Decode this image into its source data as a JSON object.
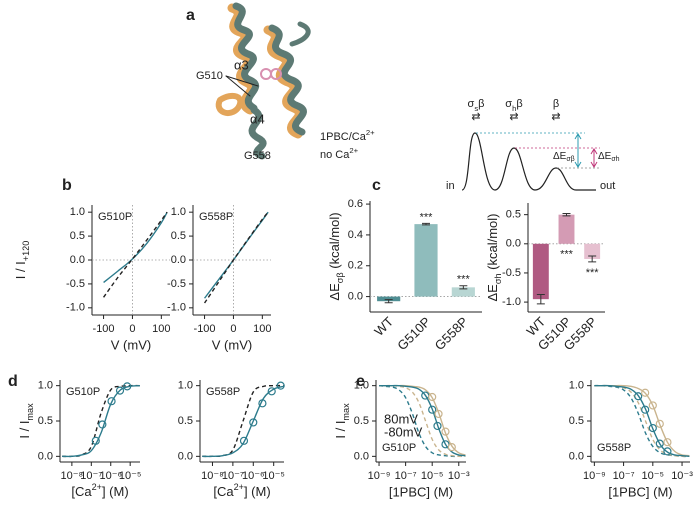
{
  "panel_labels": [
    "a",
    "b",
    "c",
    "d",
    "e"
  ],
  "structure": {
    "helix3": "α3",
    "g510": "G510",
    "helix4": "α4",
    "g558": "G558",
    "legend": [
      {
        "rich": [
          "1PBC/Ca",
          "2+"
        ],
        "color": "#5f8c86"
      },
      {
        "rich": [
          "no Ca",
          "2+"
        ],
        "color": "#e3a55a"
      }
    ]
  },
  "energy_diagram": {
    "states": [
      [
        "σ",
        "s",
        "β"
      ],
      [
        "σ",
        "h",
        "β"
      ],
      [
        "β"
      ]
    ],
    "arrow": "⇄",
    "in": "in",
    "out": "out",
    "delta_sb": [
      "ΔE",
      "σβ"
    ],
    "delta_sh": [
      "ΔE",
      "σh"
    ],
    "color_sb": "#2c9bb0",
    "color_sh": "#c0387a"
  },
  "chart_data": [
    {
      "type": "line",
      "title": "G510P",
      "title_position": "top-left",
      "zero_lines": true,
      "x": [
        -100,
        -50,
        0,
        50,
        100,
        120
      ],
      "series": [
        {
          "color": "#2c7b8c",
          "dash": false,
          "values": [
            -0.47,
            -0.23,
            0.02,
            0.35,
            0.78,
            1.0
          ]
        },
        {
          "color": "#222222",
          "dash": true,
          "values": [
            -0.78,
            -0.36,
            0.02,
            0.42,
            0.83,
            1.0
          ]
        }
      ],
      "xlim": [
        -140,
        130
      ],
      "ylim": [
        -1.15,
        1.15
      ],
      "xticks": [
        -100,
        0,
        100
      ],
      "yticks": [
        {
          "value": -1,
          "label": "-1.0"
        },
        {
          "value": -0.5,
          "label": "-0.5"
        },
        {
          "value": 0,
          "label": "0.0"
        },
        {
          "value": 0.5,
          "label": "0.5"
        },
        {
          "value": 1,
          "label": "1.0"
        }
      ],
      "xlabel": "V (mV)",
      "ylabel": [
        "I / I",
        "+120"
      ]
    },
    {
      "type": "line",
      "title": "G558P",
      "title_position": "top-left",
      "zero_lines": true,
      "x": [
        -100,
        -50,
        0,
        50,
        100,
        120
      ],
      "series": [
        {
          "color": "#2c7b8c",
          "dash": false,
          "values": [
            -0.8,
            -0.4,
            0.0,
            0.42,
            0.83,
            1.0
          ]
        },
        {
          "color": "#222222",
          "dash": true,
          "values": [
            -0.9,
            -0.45,
            0.0,
            0.43,
            0.85,
            1.0
          ]
        }
      ],
      "xlim": [
        -140,
        130
      ],
      "ylim": [
        -1.15,
        1.15
      ],
      "xticks": [
        -100,
        0,
        100
      ],
      "yticks": [
        {
          "value": -1,
          "label": "-1.0"
        },
        {
          "value": -0.5,
          "label": "-0.5"
        },
        {
          "value": 0,
          "label": "0.0"
        },
        {
          "value": 0.5,
          "label": "0.5"
        },
        {
          "value": 1,
          "label": "1.0"
        }
      ],
      "xlabel": "V (mV)"
    },
    {
      "type": "bar",
      "zero_lines": true,
      "categories": [
        "WT",
        "G510P",
        "G558P"
      ],
      "values": [
        -0.03,
        0.47,
        0.06
      ],
      "errors": [
        0.01,
        0.005,
        0.01
      ],
      "colors": [
        "#4f8e93",
        "#8fbcbc",
        "#b8d6d3"
      ],
      "ylim": [
        -0.1,
        0.62
      ],
      "yticks": [
        {
          "value": 0,
          "label": "0.0"
        },
        {
          "value": 0.2,
          "label": "0.2"
        },
        {
          "value": 0.4,
          "label": "0.4"
        },
        {
          "value": 0.6,
          "label": "0.6"
        }
      ],
      "ylabel": [
        "ΔE",
        "σβ",
        " (kcal/mol)"
      ],
      "annotations": [
        {
          "category": "G510P",
          "text": "***"
        },
        {
          "category": "G558P",
          "text": "***"
        }
      ],
      "annotation_position": "above"
    },
    {
      "type": "bar",
      "zero_lines": true,
      "categories": [
        "WT",
        "G510P",
        "G558P"
      ],
      "values": [
        -0.95,
        0.5,
        -0.26
      ],
      "errors": [
        0.08,
        0.02,
        0.05
      ],
      "colors": [
        "#b05a82",
        "#d49bb4",
        "#e6c0d0"
      ],
      "ylim": [
        -1.17,
        0.7
      ],
      "yticks": [
        {
          "value": -1,
          "label": "-1.0"
        },
        {
          "value": -0.5,
          "label": "-0.5"
        },
        {
          "value": 0,
          "label": "0.0"
        },
        {
          "value": 0.5,
          "label": "0.5"
        }
      ],
      "ylabel": [
        "ΔE",
        "σh",
        " (kcal/mol)"
      ],
      "annotations": [
        {
          "category": "G510P",
          "text": "***"
        },
        {
          "category": "G558P",
          "text": "***"
        }
      ],
      "annotation_position": "below"
    },
    {
      "type": "dose-response",
      "log_x": true,
      "title": "G510P",
      "title_position": "top-left",
      "x": [
        3.16e-09,
        1e-08,
        3.16e-08,
        1e-07,
        3.16e-07,
        1e-06,
        3.16e-06,
        1e-05,
        3.16e-05
      ],
      "series": [
        {
          "color": "#222222",
          "dash": true,
          "values": [
            0,
            0,
            0.02,
            0.14,
            0.61,
            0.94,
            0.99,
            1,
            1
          ]
        },
        {
          "color": "#2c7b8c",
          "dash": false,
          "values": [
            0,
            0,
            0.02,
            0.08,
            0.33,
            0.74,
            0.94,
            0.99,
            1
          ]
        },
        {
          "color": "#2c7b8c",
          "marker": "circle",
          "x": [
            1.7e-07,
            3.7e-07,
            1.1e-06,
            3e-06,
            7e-06
          ],
          "values": [
            0.22,
            0.45,
            0.78,
            0.93,
            0.99
          ]
        }
      ],
      "xlim": [
        2.45e-09,
        3.2e-05
      ],
      "ylim": [
        -0.08,
        1.08
      ],
      "xticks": [
        {
          "value": 1e-08,
          "label": "10⁻⁸"
        },
        {
          "value": 1e-07,
          "label": "10⁻⁷"
        },
        {
          "value": 1e-06,
          "label": "10⁻⁶"
        },
        {
          "value": 1e-05,
          "label": "10⁻⁵"
        }
      ],
      "yticks": [
        {
          "value": 0,
          "label": "0.0"
        },
        {
          "value": 0.5,
          "label": "0.5"
        },
        {
          "value": 1,
          "label": "1.0"
        }
      ],
      "xlabel": [
        "[Ca",
        "2+",
        "] (M)"
      ],
      "ylabel": [
        "I / I",
        "max"
      ]
    },
    {
      "type": "dose-response",
      "log_x": true,
      "title": "G558P",
      "title_position": "top-left",
      "x": [
        3.16e-09,
        1e-08,
        3.16e-08,
        1e-07,
        3.16e-07,
        1e-06,
        3.16e-06,
        1e-05,
        3.16e-05
      ],
      "series": [
        {
          "color": "#222222",
          "dash": true,
          "values": [
            0,
            0,
            0.01,
            0.09,
            0.5,
            0.91,
            0.99,
            1,
            1
          ]
        },
        {
          "color": "#2c7b8c",
          "dash": false,
          "values": [
            0,
            0,
            0.01,
            0.05,
            0.18,
            0.5,
            0.82,
            0.95,
            0.99
          ]
        },
        {
          "color": "#2c7b8c",
          "marker": "circle",
          "x": [
            3.5e-07,
            1e-06,
            2.8e-06,
            8e-06,
            2.2e-05
          ],
          "values": [
            0.22,
            0.48,
            0.75,
            0.92,
            1.0
          ]
        }
      ],
      "xlim": [
        2.45e-09,
        3.2e-05
      ],
      "ylim": [
        -0.08,
        1.08
      ],
      "xticks": [
        {
          "value": 1e-08,
          "label": "10⁻⁸"
        },
        {
          "value": 1e-07,
          "label": "10⁻⁷"
        },
        {
          "value": 1e-06,
          "label": "10⁻⁶"
        },
        {
          "value": 1e-05,
          "label": "10⁻⁵"
        }
      ],
      "yticks": [
        {
          "value": 0,
          "label": "0.0"
        },
        {
          "value": 0.5,
          "label": "0.5"
        },
        {
          "value": 1,
          "label": "1.0"
        }
      ],
      "xlabel": [
        "[Ca",
        "2+",
        "] (M)"
      ]
    },
    {
      "type": "dose-response",
      "log_x": true,
      "title": "G510P",
      "title_position": "bottom-left",
      "legend": "left",
      "x": [
        1e-09,
        3.16e-09,
        1e-08,
        3.16e-08,
        1e-07,
        3.16e-07,
        1e-06,
        3.16e-06,
        1e-05,
        3.16e-05,
        0.0001,
        0.000316,
        0.001,
        0.00316
      ],
      "series": [
        {
          "color": "#2c7b8c",
          "dash": true,
          "values": [
            1,
            0.99,
            0.98,
            0.94,
            0.83,
            0.61,
            0.33,
            0.14,
            0.05,
            0.02,
            0.01,
            0,
            0,
            0
          ]
        },
        {
          "color": "#c9b48e",
          "dash": true,
          "values": [
            1,
            1,
            1,
            0.99,
            0.97,
            0.91,
            0.76,
            0.5,
            0.24,
            0.09,
            0.03,
            0.01,
            0,
            0
          ]
        },
        {
          "color": "#c9b48e",
          "dash": false,
          "values": [
            1,
            1,
            1,
            1,
            1,
            0.99,
            0.98,
            0.94,
            0.83,
            0.61,
            0.33,
            0.14,
            0.05,
            0.02
          ]
        },
        {
          "color": "#2c7b8c",
          "dash": false,
          "values": [
            1,
            1,
            1,
            1,
            0.99,
            0.98,
            0.95,
            0.86,
            0.67,
            0.39,
            0.17,
            0.06,
            0.02,
            0.01
          ]
        },
        {
          "name": "80mV",
          "color": "#2c7b8c",
          "marker": "circle",
          "x": [
            3e-06,
            1e-05,
            2.5e-05,
            0.0001
          ],
          "values": [
            0.86,
            0.66,
            0.43,
            0.17
          ]
        },
        {
          "name": "-80mV",
          "color": "#c9b48e",
          "marker": "circle",
          "x": [
            1e-05,
            3e-05,
            0.0001,
            0.0003
          ],
          "values": [
            0.84,
            0.6,
            0.35,
            0.13
          ]
        }
      ],
      "xlim": [
        5.9e-10,
        0.0035
      ],
      "ylim": [
        -0.08,
        1.08
      ],
      "xticks": [
        {
          "value": 1e-09,
          "label": "10⁻⁹"
        },
        {
          "value": 1e-07,
          "label": "10⁻⁷"
        },
        {
          "value": 1e-05,
          "label": "10⁻⁵"
        },
        {
          "value": 0.001,
          "label": "10⁻³"
        }
      ],
      "yticks": [
        {
          "value": 0,
          "label": "0.0"
        },
        {
          "value": 0.5,
          "label": "0.5"
        },
        {
          "value": 1,
          "label": "1.0"
        }
      ],
      "xlabel": "[1PBC] (M)",
      "ylabel": [
        "I / I",
        "max"
      ]
    },
    {
      "type": "dose-response",
      "log_x": true,
      "title": "G558P",
      "title_position": "bottom-left",
      "x": [
        1e-09,
        3.16e-09,
        1e-08,
        3.16e-08,
        1e-07,
        3.16e-07,
        1e-06,
        3.16e-06,
        1e-05,
        3.16e-05,
        0.0001,
        0.000316,
        0.001,
        0.00316
      ],
      "series": [
        {
          "color": "#2c7b8c",
          "dash": true,
          "values": [
            1,
            1,
            0.99,
            0.98,
            0.94,
            0.83,
            0.61,
            0.33,
            0.14,
            0.05,
            0.02,
            0.01,
            0,
            0
          ]
        },
        {
          "color": "#c9b48e",
          "dash": true,
          "values": [
            1,
            1,
            1,
            0.99,
            0.97,
            0.91,
            0.76,
            0.5,
            0.24,
            0.09,
            0.03,
            0.01,
            0,
            0
          ]
        },
        {
          "color": "#c9b48e",
          "dash": false,
          "values": [
            1,
            1,
            1,
            1,
            1,
            0.99,
            0.96,
            0.89,
            0.72,
            0.44,
            0.2,
            0.07,
            0.02,
            0.01
          ]
        },
        {
          "color": "#2c7b8c",
          "dash": false,
          "values": [
            1,
            1,
            1,
            0.99,
            0.98,
            0.95,
            0.86,
            0.67,
            0.39,
            0.17,
            0.06,
            0.02,
            0.01,
            0
          ]
        },
        {
          "color": "#2c7b8c",
          "marker": "circle",
          "x": [
            1e-06,
            3e-06,
            1e-05,
            3e-05,
            0.0001
          ],
          "values": [
            0.85,
            0.66,
            0.4,
            0.18,
            0.07
          ]
        },
        {
          "color": "#c9b48e",
          "marker": "circle",
          "x": [
            3e-06,
            1e-05,
            3e-05,
            0.0001
          ],
          "values": [
            0.9,
            0.72,
            0.46,
            0.2
          ]
        }
      ],
      "xlim": [
        5.9e-10,
        0.0035
      ],
      "ylim": [
        -0.08,
        1.08
      ],
      "xticks": [
        {
          "value": 1e-09,
          "label": "10⁻⁹"
        },
        {
          "value": 1e-07,
          "label": "10⁻⁷"
        },
        {
          "value": 1e-05,
          "label": "10⁻⁵"
        },
        {
          "value": 0.001,
          "label": "10⁻³"
        }
      ],
      "yticks": [
        {
          "value": 0,
          "label": "0.0"
        },
        {
          "value": 0.5,
          "label": "0.5"
        },
        {
          "value": 1,
          "label": "1.0"
        }
      ],
      "xlabel": "[1PBC] (M)"
    }
  ]
}
